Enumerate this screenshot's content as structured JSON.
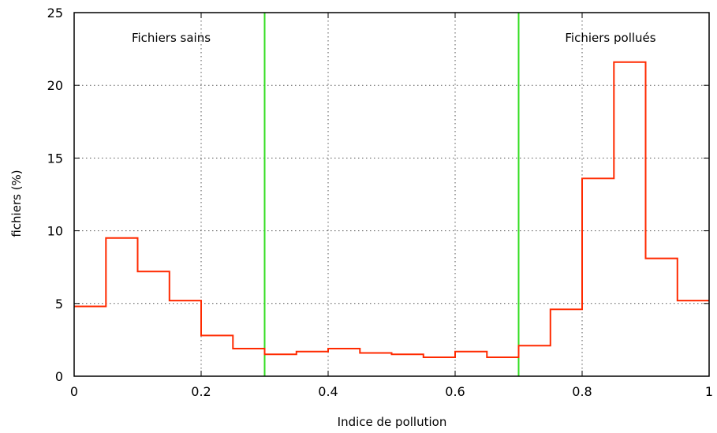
{
  "chart_data": {
    "type": "step",
    "title": "",
    "xlabel": "Indice de pollution",
    "ylabel": "fichiers (%)",
    "xlim": [
      0,
      1
    ],
    "ylim": [
      0,
      25
    ],
    "grid": true,
    "grid_style": "dotted",
    "xticks": [
      0,
      0.2,
      0.4,
      0.6,
      0.8,
      1
    ],
    "xtick_labels": [
      "0",
      "0.2",
      "0.4",
      "0.6",
      "0.8",
      "1"
    ],
    "yticks": [
      0,
      5,
      10,
      15,
      20,
      25
    ],
    "ytick_labels": [
      "0",
      "5",
      "10",
      "15",
      "20",
      "25"
    ],
    "bin_width": 0.05,
    "bins": [
      {
        "x0": 0.0,
        "x1": 0.05,
        "y": 4.8
      },
      {
        "x0": 0.05,
        "x1": 0.1,
        "y": 9.5
      },
      {
        "x0": 0.1,
        "x1": 0.15,
        "y": 7.2
      },
      {
        "x0": 0.15,
        "x1": 0.2,
        "y": 5.2
      },
      {
        "x0": 0.2,
        "x1": 0.25,
        "y": 2.8
      },
      {
        "x0": 0.25,
        "x1": 0.3,
        "y": 1.9
      },
      {
        "x0": 0.3,
        "x1": 0.35,
        "y": 1.5
      },
      {
        "x0": 0.35,
        "x1": 0.4,
        "y": 1.7
      },
      {
        "x0": 0.4,
        "x1": 0.45,
        "y": 1.9
      },
      {
        "x0": 0.45,
        "x1": 0.5,
        "y": 1.6
      },
      {
        "x0": 0.5,
        "x1": 0.55,
        "y": 1.5
      },
      {
        "x0": 0.55,
        "x1": 0.6,
        "y": 1.3
      },
      {
        "x0": 0.6,
        "x1": 0.65,
        "y": 1.7
      },
      {
        "x0": 0.65,
        "x1": 0.7,
        "y": 1.3
      },
      {
        "x0": 0.7,
        "x1": 0.75,
        "y": 2.1
      },
      {
        "x0": 0.75,
        "x1": 0.8,
        "y": 4.6
      },
      {
        "x0": 0.8,
        "x1": 0.85,
        "y": 13.6
      },
      {
        "x0": 0.85,
        "x1": 0.9,
        "y": 21.6
      },
      {
        "x0": 0.9,
        "x1": 0.95,
        "y": 8.1
      },
      {
        "x0": 0.95,
        "x1": 1.0,
        "y": 5.2
      }
    ],
    "threshold_lines": [
      0.3,
      0.7
    ],
    "annotations": [
      "Fichiers sains",
      "Fichiers pollués"
    ],
    "colors": {
      "series": "#ff2a00",
      "threshold": "#33dd22",
      "grid": "#555555",
      "axis": "#000000"
    }
  }
}
